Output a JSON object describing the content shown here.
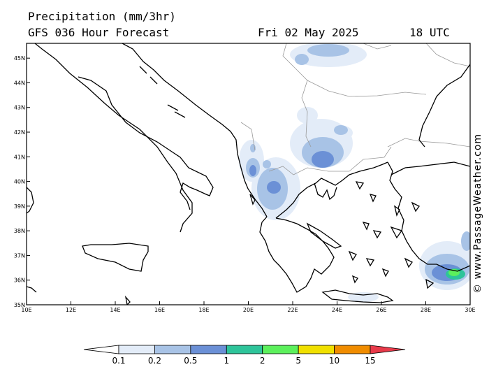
{
  "header": {
    "title": "Precipitation (mm/3hr)",
    "subtitle": "GFS 036 Hour Forecast",
    "date": "Fri 02 May 2025",
    "hour": "18 UTC"
  },
  "credit": "© www.PassageWeather.com",
  "map": {
    "lon_range": [
      10,
      30
    ],
    "lat_range": [
      35,
      45.6
    ],
    "lat_ticks": [
      "35N",
      "36N",
      "37N",
      "38N",
      "39N",
      "40N",
      "41N",
      "42N",
      "43N",
      "44N",
      "45N"
    ],
    "lon_ticks": [
      "10E",
      "12E",
      "14E",
      "16E",
      "18E",
      "20E",
      "22E",
      "24E",
      "26E",
      "28E",
      "30E"
    ]
  },
  "colorbar": {
    "labels": [
      "0.1",
      "0.2",
      "0.5",
      "1",
      "2",
      "5",
      "10",
      "15"
    ],
    "colors": [
      "#ffffff",
      "#e3ecf8",
      "#a8c3e6",
      "#6b90d6",
      "#2ec49a",
      "#5cf05c",
      "#f0e000",
      "#f08c00",
      "#e83a4a"
    ]
  }
}
